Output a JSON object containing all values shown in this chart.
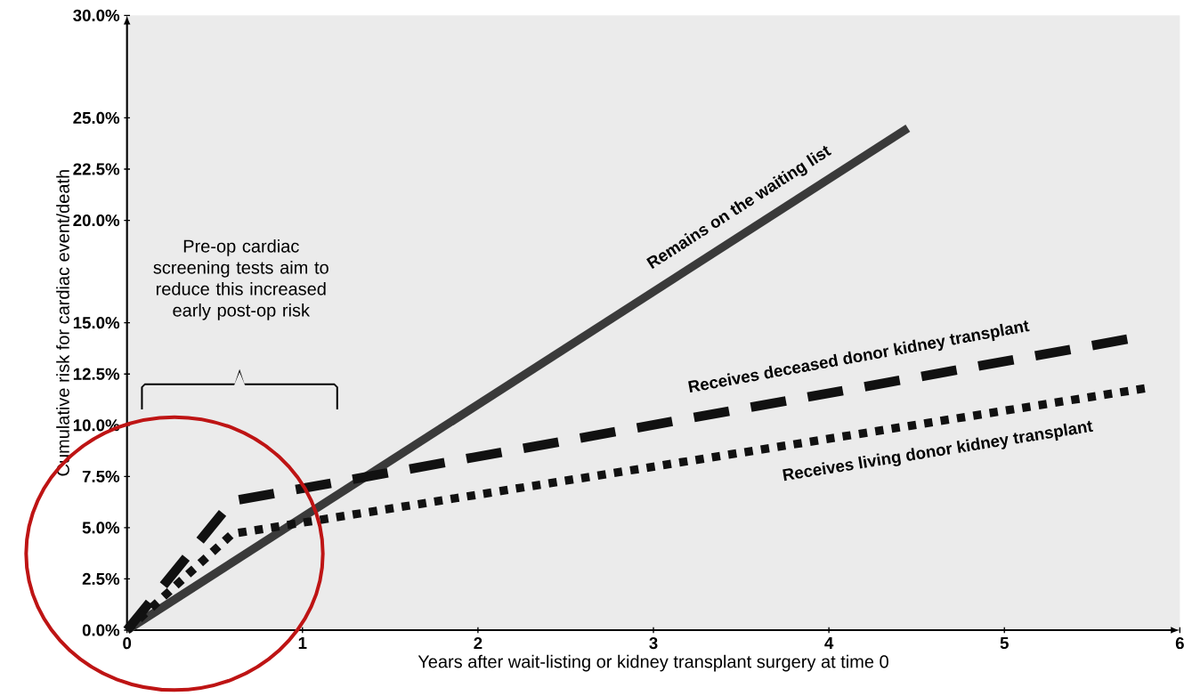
{
  "chart_data": {
    "type": "line",
    "xlabel": "Years after wait-listing or kidney transplant surgery at time 0",
    "ylabel": "Cumulative risk for cardiac event/death",
    "xlim": [
      0,
      6
    ],
    "xticks": [
      0,
      1,
      2,
      3,
      4,
      5,
      6
    ],
    "ylim": [
      0,
      30
    ],
    "yticks": [
      {
        "value": 0,
        "label": "0.0%"
      },
      {
        "value": 2.5,
        "label": "2.5%"
      },
      {
        "value": 5,
        "label": "5.0%"
      },
      {
        "value": 7.5,
        "label": "7.5%"
      },
      {
        "value": 10,
        "label": "10.0%"
      },
      {
        "value": 12.5,
        "label": "12.5%"
      },
      {
        "value": 15,
        "label": "15.0%"
      },
      {
        "value": 20,
        "label": "20.0%"
      },
      {
        "value": 22.5,
        "label": "22.5%"
      },
      {
        "value": 25,
        "label": "25.0%"
      },
      {
        "value": 30,
        "label": "30.0%"
      }
    ],
    "series": [
      {
        "name": "Remains on the waiting list",
        "color": "#3a3a3a",
        "line_style": "solid",
        "x": [
          0,
          4.45
        ],
        "values": [
          0,
          24.5
        ]
      },
      {
        "name": "Receives deceased donor kidney transplant",
        "color": "#111111",
        "line_style": "dashed",
        "x": [
          0,
          0.6,
          5.7
        ],
        "values": [
          0,
          6.3,
          14.2
        ]
      },
      {
        "name": "Receives living donor kidney transplant",
        "color": "#111111",
        "line_style": "dotted",
        "x": [
          0,
          0.6,
          5.8
        ],
        "values": [
          0,
          4.7,
          11.8
        ]
      }
    ],
    "annotations": [
      "Pre-op cardiac screening tests aim to reduce this increased early post-op risk"
    ]
  }
}
